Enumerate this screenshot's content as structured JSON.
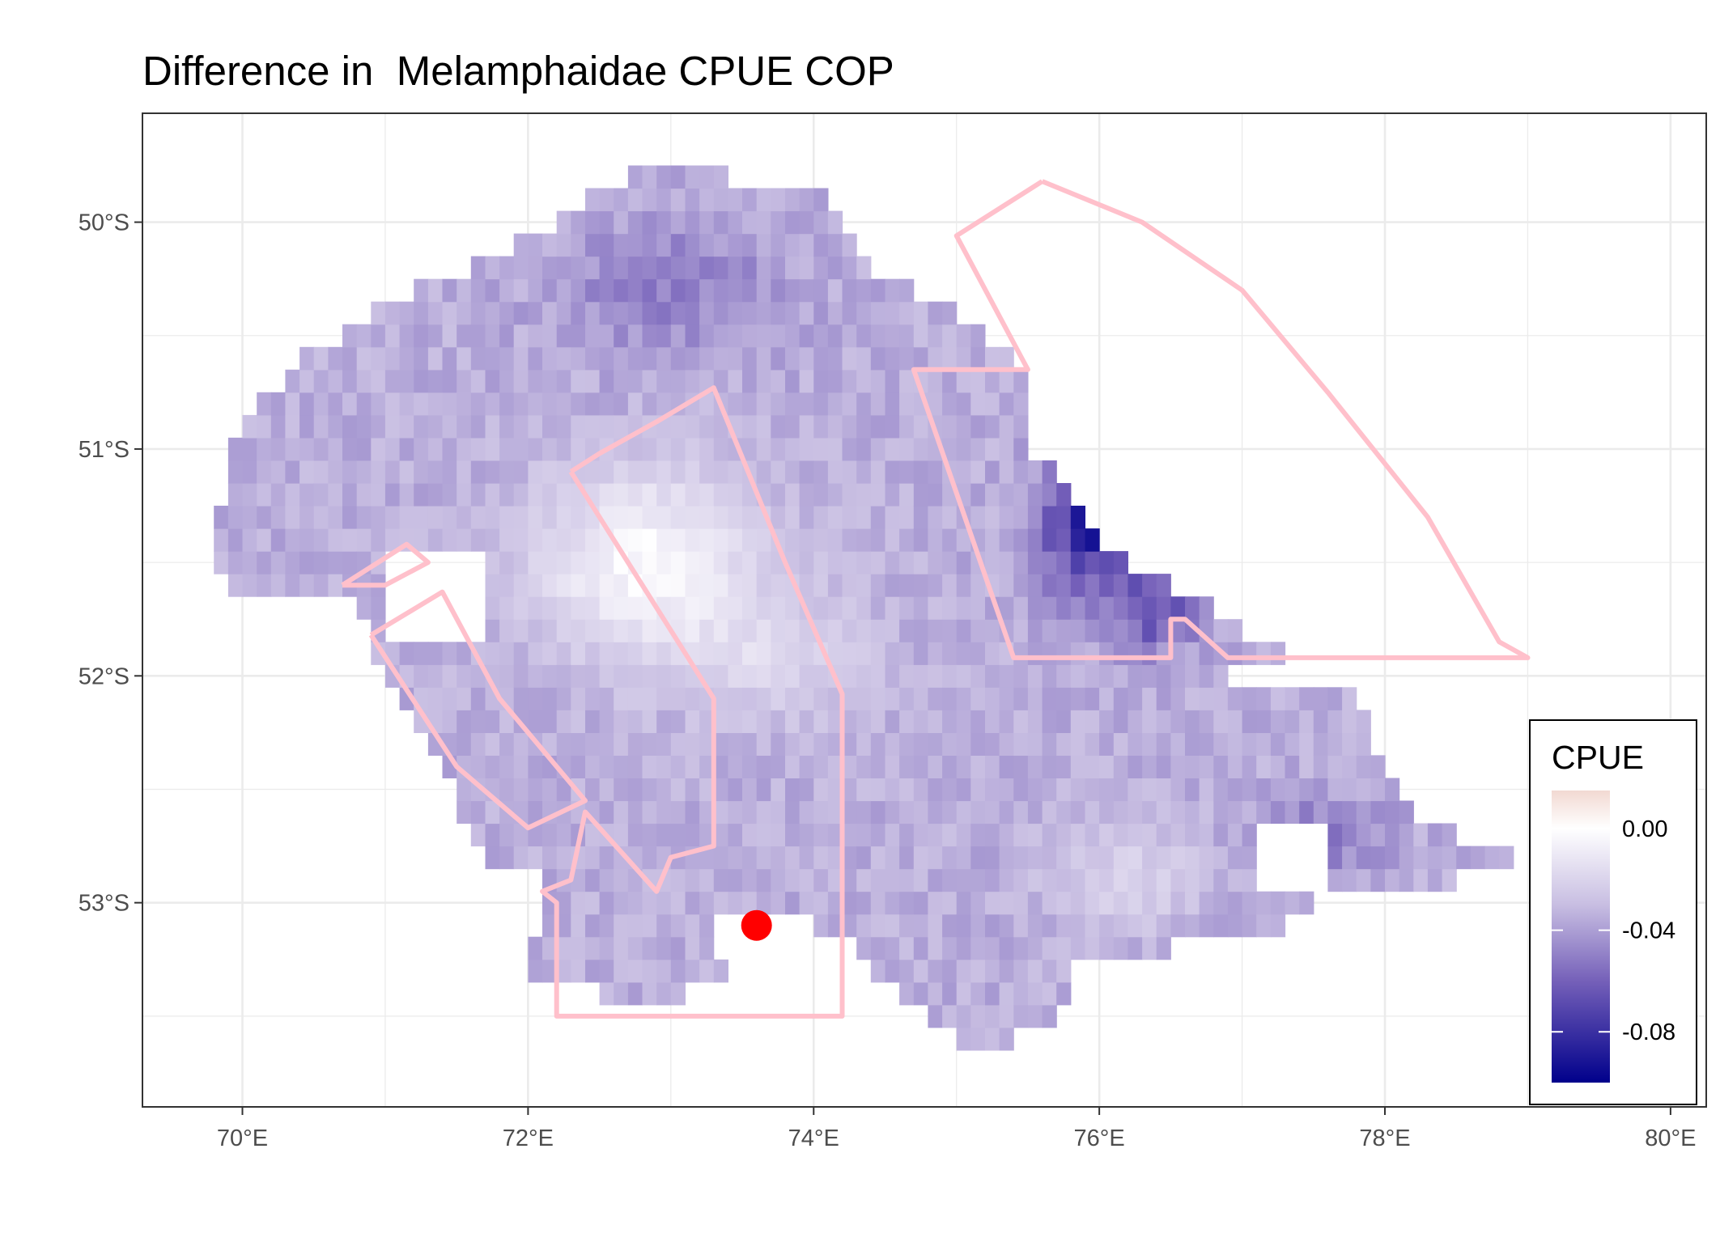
{
  "title": "Difference in  Melamphaidae CPUE COP",
  "x_axis": {
    "ticks": [
      {
        "value": 70,
        "label": "70°E"
      },
      {
        "value": 72,
        "label": "72°E"
      },
      {
        "value": 74,
        "label": "74°E"
      },
      {
        "value": 76,
        "label": "76°E"
      },
      {
        "value": 78,
        "label": "78°E"
      },
      {
        "value": 80,
        "label": "80°E"
      }
    ],
    "range": [
      69.3,
      80.25
    ]
  },
  "y_axis": {
    "ticks": [
      {
        "value": -50,
        "label": "50°S"
      },
      {
        "value": -51,
        "label": "51°S"
      },
      {
        "value": -52,
        "label": "52°S"
      },
      {
        "value": -53,
        "label": "53°S"
      }
    ],
    "range": [
      -53.9,
      -49.52
    ]
  },
  "legend": {
    "title": "CPUE",
    "range": [
      -0.1,
      0.015
    ],
    "ticks": [
      {
        "value": 0.0,
        "label": "0.00"
      },
      {
        "value": -0.04,
        "label": "-0.04"
      },
      {
        "value": -0.08,
        "label": "-0.08"
      }
    ],
    "colors": {
      "low": "#00008b",
      "mid": "#ffffff",
      "high": "#f2d9d2"
    }
  },
  "polygon_color": "#ffc0cb",
  "marker": {
    "lon": 73.6,
    "lat": -53.1,
    "color": "#ff0000"
  },
  "polygons": [
    {
      "name": "north-east-sector",
      "points": [
        [
          75.6,
          -49.82
        ],
        [
          76.3,
          -50.0
        ],
        [
          77.0,
          -50.3
        ],
        [
          77.6,
          -50.75
        ],
        [
          78.3,
          -51.3
        ],
        [
          78.8,
          -51.85
        ],
        [
          79.0,
          -51.92
        ],
        [
          76.9,
          -51.92
        ],
        [
          76.6,
          -51.75
        ],
        [
          76.5,
          -51.75
        ],
        [
          76.5,
          -51.92
        ],
        [
          75.4,
          -51.92
        ],
        [
          74.7,
          -50.65
        ],
        [
          75.5,
          -50.65
        ],
        [
          75.0,
          -50.06
        ],
        [
          75.6,
          -49.82
        ]
      ]
    },
    {
      "name": "central-wedge",
      "points": [
        [
          72.3,
          -51.1
        ],
        [
          72.5,
          -51.02
        ],
        [
          72.9,
          -50.88
        ],
        [
          73.3,
          -50.73
        ],
        [
          73.8,
          -51.5
        ],
        [
          74.2,
          -52.08
        ],
        [
          74.2,
          -53.5
        ],
        [
          72.2,
          -53.5
        ],
        [
          72.2,
          -53.0
        ],
        [
          72.1,
          -52.95
        ],
        [
          72.3,
          -52.9
        ],
        [
          72.4,
          -52.6
        ],
        [
          72.9,
          -52.95
        ],
        [
          73.0,
          -52.8
        ],
        [
          73.3,
          -52.75
        ],
        [
          73.3,
          -52.1
        ],
        [
          72.7,
          -51.5
        ],
        [
          72.3,
          -51.1
        ]
      ]
    },
    {
      "name": "western-inner",
      "points": [
        [
          70.9,
          -51.82
        ],
        [
          71.4,
          -51.63
        ],
        [
          71.8,
          -52.1
        ],
        [
          72.4,
          -52.55
        ],
        [
          72.0,
          -52.67
        ],
        [
          71.5,
          -52.4
        ],
        [
          70.9,
          -51.82
        ]
      ]
    },
    {
      "name": "western-tab",
      "points": [
        [
          70.7,
          -51.6
        ],
        [
          71.15,
          -51.42
        ],
        [
          71.3,
          -51.5
        ],
        [
          71.0,
          -51.6
        ],
        [
          70.7,
          -51.6
        ]
      ]
    }
  ]
}
